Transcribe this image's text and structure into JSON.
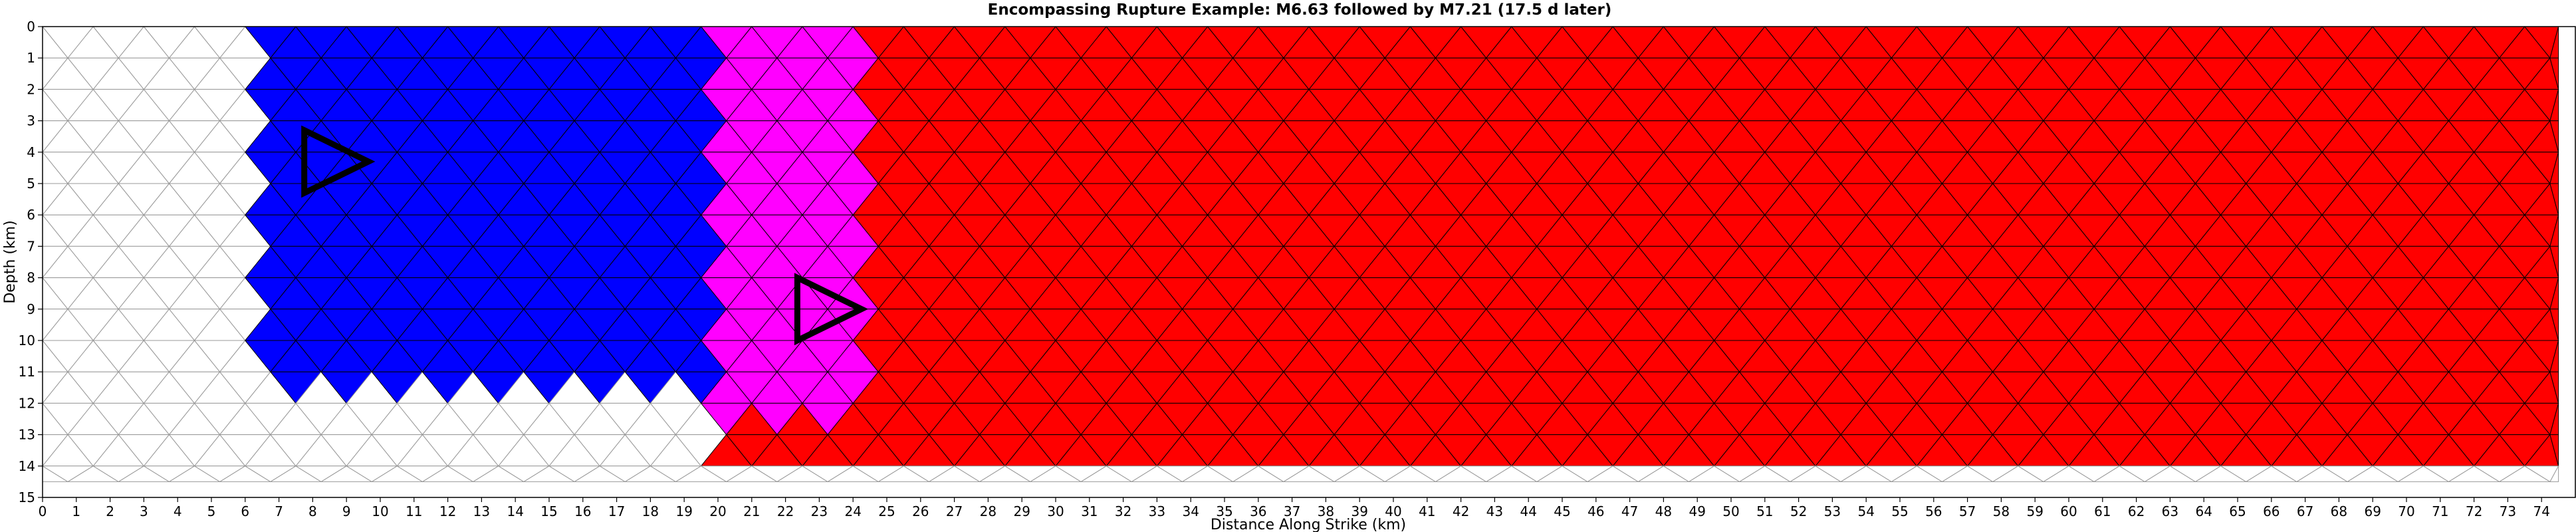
{
  "chart_data": {
    "type": "heatmap",
    "title": "Encompassing Rupture Example: M6.63 followed by M7.21 (17.5 d later)",
    "xlabel": "Distance Along Strike (km)",
    "ylabel": "Depth (km)",
    "xlim": [
      0,
      75
    ],
    "ylim": [
      15,
      0
    ],
    "x_ticks": [
      0,
      1,
      2,
      3,
      4,
      5,
      6,
      7,
      8,
      9,
      10,
      11,
      12,
      13,
      14,
      15,
      16,
      17,
      18,
      19,
      20,
      21,
      22,
      23,
      24,
      25,
      26,
      27,
      28,
      29,
      30,
      31,
      32,
      33,
      34,
      35,
      36,
      37,
      38,
      39,
      40,
      41,
      42,
      43,
      44,
      45,
      46,
      47,
      48,
      49,
      50,
      51,
      52,
      53,
      54,
      55,
      56,
      57,
      58,
      59,
      60,
      61,
      62,
      63,
      64,
      65,
      66,
      67,
      68,
      69,
      70,
      71,
      72,
      73,
      74
    ],
    "y_ticks": [
      0,
      1,
      2,
      3,
      4,
      5,
      6,
      7,
      8,
      9,
      10,
      11,
      12,
      13,
      14,
      15
    ],
    "mesh": {
      "type": "triangular",
      "x_extent": [
        0,
        74.5
      ],
      "depth_extent": [
        0,
        14.5
      ]
    },
    "colors": {
      "first_event": "#0000ff",
      "second_event": "#ff0000",
      "overlap": "#ff00ff",
      "unruptured": "#ffffff",
      "mesh_outline": "#999999",
      "rupture_outline": "#000000",
      "hypocenter_marker": "#000000"
    },
    "events": [
      {
        "name": "M6.63",
        "color": "#0000ff",
        "region": {
          "x_range": [
            6.5,
            20
          ],
          "depth_range": [
            0,
            11.5
          ]
        }
      },
      {
        "name": "M7.21",
        "color": "#ff0000",
        "region": {
          "x_range": [
            20,
            74.5
          ],
          "depth_range": [
            0,
            14
          ]
        }
      }
    ],
    "overlap_region": {
      "color": "#ff00ff",
      "x_range": [
        20,
        24.5
      ],
      "depth_range": [
        0,
        12.5
      ]
    },
    "hypocenters": [
      {
        "event": "M6.63",
        "x": 8.7,
        "depth": 4.3,
        "marker": "triangle-right"
      },
      {
        "event": "M7.21",
        "x": 23.3,
        "depth": 9.0,
        "marker": "triangle-right"
      }
    ]
  }
}
